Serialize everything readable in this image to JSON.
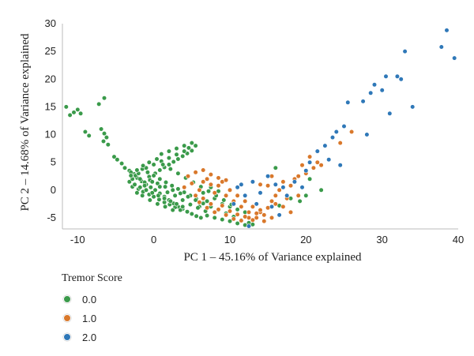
{
  "chart_data": {
    "type": "scatter",
    "xlabel": "PC 1 – 45.16% of Variance explained",
    "ylabel": "PC 2 – 14.68% of Variance explained",
    "xlim": [
      -12,
      40
    ],
    "ylim": [
      -7,
      30
    ],
    "xticks": [
      -10,
      0,
      10,
      20,
      30,
      40
    ],
    "yticks": [
      -5,
      0,
      5,
      10,
      15,
      20,
      25,
      30
    ],
    "grid": false,
    "legend": {
      "title": "Tremor Score",
      "placement": "bottom-left"
    },
    "series": [
      {
        "name": "0.0",
        "color": "#3a9a4a",
        "points": [
          [
            -11.5,
            15.0
          ],
          [
            -11.0,
            13.5
          ],
          [
            -10.5,
            14.0
          ],
          [
            -10.0,
            14.5
          ],
          [
            -9.6,
            13.8
          ],
          [
            -9.0,
            10.5
          ],
          [
            -8.5,
            9.8
          ],
          [
            -7.2,
            15.5
          ],
          [
            -6.5,
            16.6
          ],
          [
            -6.9,
            11.0
          ],
          [
            -6.5,
            10.2
          ],
          [
            -6.2,
            9.5
          ],
          [
            -6.6,
            8.8
          ],
          [
            -6.0,
            8.2
          ],
          [
            -5.2,
            6.0
          ],
          [
            -4.8,
            5.5
          ],
          [
            -4.2,
            4.8
          ],
          [
            -3.8,
            4.0
          ],
          [
            -3.2,
            3.5
          ],
          [
            -2.6,
            2.9
          ],
          [
            -2.2,
            2.2
          ],
          [
            -1.6,
            1.6
          ],
          [
            -1.0,
            1.0
          ],
          [
            -0.4,
            0.5
          ],
          [
            0.2,
            0.0
          ],
          [
            0.8,
            -0.6
          ],
          [
            1.4,
            -1.2
          ],
          [
            2.0,
            -1.8
          ],
          [
            2.6,
            -2.4
          ],
          [
            3.2,
            -3.0
          ],
          [
            3.8,
            -3.4
          ],
          [
            4.4,
            -3.9
          ],
          [
            5.0,
            -4.3
          ],
          [
            5.6,
            -4.7
          ],
          [
            6.2,
            -5.0
          ],
          [
            -2.8,
            0.6
          ],
          [
            -2.0,
            0.2
          ],
          [
            -1.4,
            -0.3
          ],
          [
            -0.6,
            -0.8
          ],
          [
            0.0,
            -1.2
          ],
          [
            0.7,
            -1.7
          ],
          [
            1.4,
            -2.2
          ],
          [
            2.1,
            -2.6
          ],
          [
            2.8,
            -3.1
          ],
          [
            3.5,
            -3.6
          ],
          [
            -3.0,
            3.2
          ],
          [
            -2.4,
            2.6
          ],
          [
            -1.8,
            2.0
          ],
          [
            -1.2,
            1.4
          ],
          [
            -0.6,
            2.4
          ],
          [
            0.2,
            3.0
          ],
          [
            0.8,
            3.6
          ],
          [
            1.4,
            4.1
          ],
          [
            2.0,
            4.6
          ],
          [
            2.6,
            5.1
          ],
          [
            3.2,
            5.6
          ],
          [
            3.8,
            6.1
          ],
          [
            4.4,
            6.6
          ],
          [
            5.0,
            7.1
          ],
          [
            5.5,
            8.0
          ],
          [
            -3.2,
            1.5
          ],
          [
            -2.5,
            1.0
          ],
          [
            -1.8,
            0.5
          ],
          [
            -1.0,
            0.0
          ],
          [
            -0.2,
            -0.5
          ],
          [
            0.6,
            -1.0
          ],
          [
            1.4,
            -1.5
          ],
          [
            2.2,
            -2.0
          ],
          [
            3.0,
            -2.5
          ],
          [
            3.8,
            -3.0
          ],
          [
            -1.5,
            3.8
          ],
          [
            -0.8,
            3.2
          ],
          [
            0.0,
            2.6
          ],
          [
            0.8,
            2.0
          ],
          [
            1.6,
            1.4
          ],
          [
            2.4,
            0.8
          ],
          [
            3.2,
            0.2
          ],
          [
            4.0,
            -0.4
          ],
          [
            4.8,
            -1.0
          ],
          [
            5.6,
            -1.6
          ],
          [
            -2.8,
            2.0
          ],
          [
            -2.0,
            3.0
          ],
          [
            -1.0,
            4.0
          ],
          [
            0.0,
            4.6
          ],
          [
            1.0,
            5.2
          ],
          [
            2.0,
            5.8
          ],
          [
            3.0,
            6.4
          ],
          [
            4.0,
            7.0
          ],
          [
            4.6,
            7.6
          ],
          [
            -0.5,
            1.8
          ],
          [
            0.5,
            1.2
          ],
          [
            1.5,
            0.6
          ],
          [
            2.5,
            0.0
          ],
          [
            3.5,
            -0.6
          ],
          [
            4.5,
            -1.2
          ],
          [
            5.5,
            -1.8
          ],
          [
            6.5,
            -2.4
          ],
          [
            7.5,
            -3.0
          ],
          [
            8.5,
            -3.6
          ],
          [
            9.5,
            -4.2
          ],
          [
            10.5,
            -4.8
          ],
          [
            11.5,
            -5.4
          ],
          [
            12.5,
            -5.9
          ],
          [
            13.0,
            -6.2
          ],
          [
            7.0,
            -4.6
          ],
          [
            8.0,
            -5.0
          ],
          [
            9.0,
            -5.3
          ],
          [
            10.0,
            -5.6
          ],
          [
            11.0,
            -6.0
          ],
          [
            12.0,
            -6.3
          ],
          [
            6.0,
            -3.0
          ],
          [
            7.0,
            -2.0
          ],
          [
            8.0,
            -1.5
          ],
          [
            9.0,
            -2.5
          ],
          [
            10.0,
            -3.0
          ],
          [
            11.0,
            -3.5
          ],
          [
            12.0,
            -4.0
          ],
          [
            6.5,
            -0.5
          ],
          [
            7.5,
            0.5
          ],
          [
            8.5,
            -0.2
          ],
          [
            1.0,
            6.5
          ],
          [
            2.0,
            7.0
          ],
          [
            3.0,
            7.5
          ],
          [
            4.0,
            8.0
          ],
          [
            5.0,
            8.5
          ],
          [
            -1.5,
            -1.0
          ],
          [
            -0.5,
            -1.8
          ],
          [
            0.5,
            -2.5
          ],
          [
            1.5,
            -3.0
          ],
          [
            2.5,
            -3.6
          ],
          [
            -2.2,
            -0.5
          ],
          [
            -1.2,
            0.8
          ],
          [
            -0.2,
            1.5
          ],
          [
            0.8,
            0.6
          ],
          [
            1.8,
            -0.4
          ],
          [
            2.8,
            -1.0
          ],
          [
            3.8,
            -1.8
          ],
          [
            4.8,
            -2.6
          ],
          [
            5.8,
            -3.2
          ],
          [
            6.8,
            -3.8
          ],
          [
            -3.0,
            2.6
          ],
          [
            -2.2,
            3.6
          ],
          [
            -1.4,
            4.4
          ],
          [
            -0.6,
            5.0
          ],
          [
            0.4,
            5.6
          ],
          [
            1.2,
            4.6
          ],
          [
            2.2,
            3.8
          ],
          [
            3.2,
            3.0
          ],
          [
            4.2,
            2.2
          ],
          [
            5.2,
            1.4
          ],
          [
            6.2,
            0.6
          ],
          [
            7.2,
            -0.2
          ],
          [
            8.2,
            -1.0
          ],
          [
            9.2,
            -1.8
          ],
          [
            10.2,
            -2.6
          ],
          [
            16.5,
            -2.8
          ],
          [
            18.0,
            -1.5
          ],
          [
            19.2,
            -2.0
          ],
          [
            20.0,
            -1.0
          ],
          [
            22.0,
            0.0
          ],
          [
            20.5,
            2.0
          ],
          [
            16.0,
            4.0
          ]
        ]
      },
      {
        "name": "1.0",
        "color": "#d9782b",
        "points": [
          [
            4.0,
            0.5
          ],
          [
            5.0,
            1.2
          ],
          [
            6.0,
            0.0
          ],
          [
            6.5,
            1.5
          ],
          [
            7.0,
            2.0
          ],
          [
            7.5,
            1.0
          ],
          [
            8.0,
            -0.5
          ],
          [
            8.5,
            0.8
          ],
          [
            9.0,
            1.5
          ],
          [
            9.5,
            -1.0
          ],
          [
            10.0,
            0.0
          ],
          [
            10.5,
            -2.0
          ],
          [
            11.0,
            -1.0
          ],
          [
            11.5,
            -3.0
          ],
          [
            12.0,
            -2.0
          ],
          [
            12.5,
            -4.0
          ],
          [
            13.0,
            -3.0
          ],
          [
            13.5,
            -5.0
          ],
          [
            14.0,
            -4.0
          ],
          [
            14.5,
            -4.5
          ],
          [
            15.0,
            -3.2
          ],
          [
            15.5,
            -2.0
          ],
          [
            16.0,
            -1.0
          ],
          [
            16.5,
            0.0
          ],
          [
            17.0,
            1.5
          ],
          [
            17.5,
            -1.5
          ],
          [
            18.0,
            0.8
          ],
          [
            18.5,
            2.0
          ],
          [
            19.0,
            2.5
          ],
          [
            19.5,
            4.5
          ],
          [
            20.0,
            3.0
          ],
          [
            21.0,
            4.0
          ],
          [
            22.0,
            4.5
          ],
          [
            20.5,
            6.0
          ],
          [
            21.5,
            5.0
          ],
          [
            6.5,
            -1.5
          ],
          [
            7.5,
            -2.5
          ],
          [
            8.5,
            -3.5
          ],
          [
            9.5,
            -4.5
          ],
          [
            10.5,
            -5.2
          ],
          [
            11.5,
            -5.5
          ],
          [
            12.5,
            -5.0
          ],
          [
            13.5,
            -4.2
          ],
          [
            14.5,
            -5.6
          ],
          [
            15.5,
            -5.0
          ],
          [
            5.5,
            -1.0
          ],
          [
            6.0,
            -2.2
          ],
          [
            7.0,
            -3.2
          ],
          [
            8.0,
            -4.0
          ],
          [
            9.0,
            -2.8
          ],
          [
            10.0,
            -3.8
          ],
          [
            11.0,
            -4.4
          ],
          [
            12.0,
            -4.8
          ],
          [
            13.0,
            -5.4
          ],
          [
            14.0,
            -3.6
          ],
          [
            15.0,
            0.8
          ],
          [
            16.0,
            -2.5
          ],
          [
            17.0,
            -3.0
          ],
          [
            18.0,
            -4.0
          ],
          [
            19.0,
            -1.0
          ],
          [
            26.0,
            10.5
          ],
          [
            24.5,
            8.5
          ],
          [
            14.0,
            1.0
          ],
          [
            15.5,
            2.5
          ],
          [
            4.5,
            2.5
          ],
          [
            5.5,
            3.2
          ],
          [
            6.5,
            3.6
          ],
          [
            7.5,
            2.8
          ],
          [
            8.5,
            2.2
          ],
          [
            9.5,
            1.8
          ]
        ]
      },
      {
        "name": "2.0",
        "color": "#2f78b8",
        "points": [
          [
            11.0,
            0.5
          ],
          [
            12.0,
            -1.0
          ],
          [
            13.0,
            1.5
          ],
          [
            14.0,
            -0.5
          ],
          [
            15.0,
            2.5
          ],
          [
            16.0,
            1.0
          ],
          [
            17.0,
            0.5
          ],
          [
            18.5,
            1.5
          ],
          [
            19.5,
            0.5
          ],
          [
            20.0,
            3.5
          ],
          [
            20.5,
            5.0
          ],
          [
            21.5,
            7.0
          ],
          [
            22.5,
            8.0
          ],
          [
            23.5,
            9.5
          ],
          [
            24.0,
            10.5
          ],
          [
            25.0,
            11.5
          ],
          [
            25.5,
            15.8
          ],
          [
            27.5,
            16.0
          ],
          [
            28.0,
            10.0
          ],
          [
            28.5,
            17.5
          ],
          [
            29.0,
            19.0
          ],
          [
            30.0,
            18.0
          ],
          [
            30.5,
            20.5
          ],
          [
            31.0,
            13.8
          ],
          [
            32.0,
            20.5
          ],
          [
            32.5,
            20.0
          ],
          [
            33.0,
            25.0
          ],
          [
            34.0,
            15.0
          ],
          [
            37.8,
            25.8
          ],
          [
            38.5,
            28.8
          ],
          [
            39.5,
            23.8
          ],
          [
            24.5,
            4.5
          ],
          [
            15.5,
            -3.0
          ],
          [
            16.5,
            -4.5
          ],
          [
            12.5,
            -6.5
          ],
          [
            13.5,
            -2.5
          ],
          [
            17.5,
            -1.0
          ],
          [
            10.5,
            -2.5
          ],
          [
            11.5,
            1.0
          ],
          [
            23.0,
            5.5
          ]
        ]
      }
    ]
  }
}
